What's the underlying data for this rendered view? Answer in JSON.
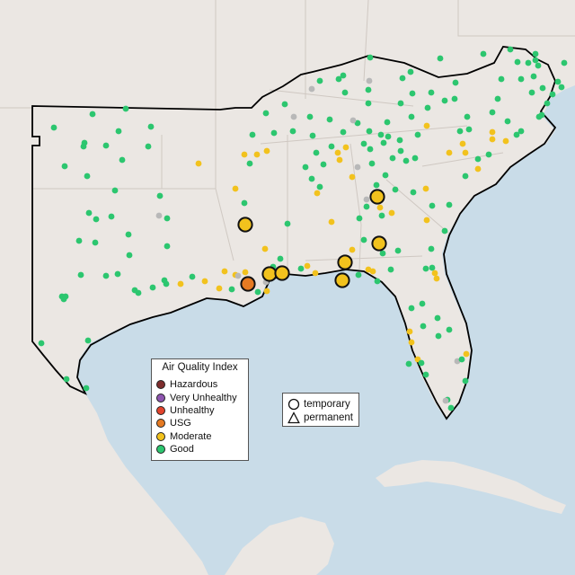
{
  "legend": {
    "title": "Air Quality Index",
    "items": [
      {
        "label": "Hazardous",
        "color": "#7e2d2d"
      },
      {
        "label": "Very Unhealthy",
        "color": "#8e55b0"
      },
      {
        "label": "Unhealthy",
        "color": "#e2442d"
      },
      {
        "label": "USG",
        "color": "#e57a22"
      },
      {
        "label": "Moderate",
        "color": "#f2c21d"
      },
      {
        "label": "Good",
        "color": "#2cc66f"
      }
    ]
  },
  "monitor_type_legend": {
    "items": [
      {
        "label": "temporary",
        "icon": "circle-outline-icon"
      },
      {
        "label": "permanent",
        "icon": "triangle-outline-icon"
      }
    ]
  },
  "colors": {
    "water": "#c9dce8",
    "land": "#ebe7e3",
    "good": "#2cc66f",
    "moderate": "#f2c21d",
    "usg": "#e57a22",
    "no_data": "#b8b8b8"
  },
  "monitors": {
    "large": [
      {
        "category": "Moderate",
        "type": "temporary"
      },
      {
        "category": "Moderate",
        "type": "temporary"
      },
      {
        "category": "Moderate",
        "type": "temporary"
      },
      {
        "category": "Moderate",
        "type": "temporary"
      },
      {
        "category": "Moderate",
        "type": "temporary"
      },
      {
        "category": "Moderate",
        "type": "temporary"
      },
      {
        "category": "Moderate",
        "type": "temporary"
      },
      {
        "category": "USG",
        "type": "temporary"
      }
    ]
  }
}
